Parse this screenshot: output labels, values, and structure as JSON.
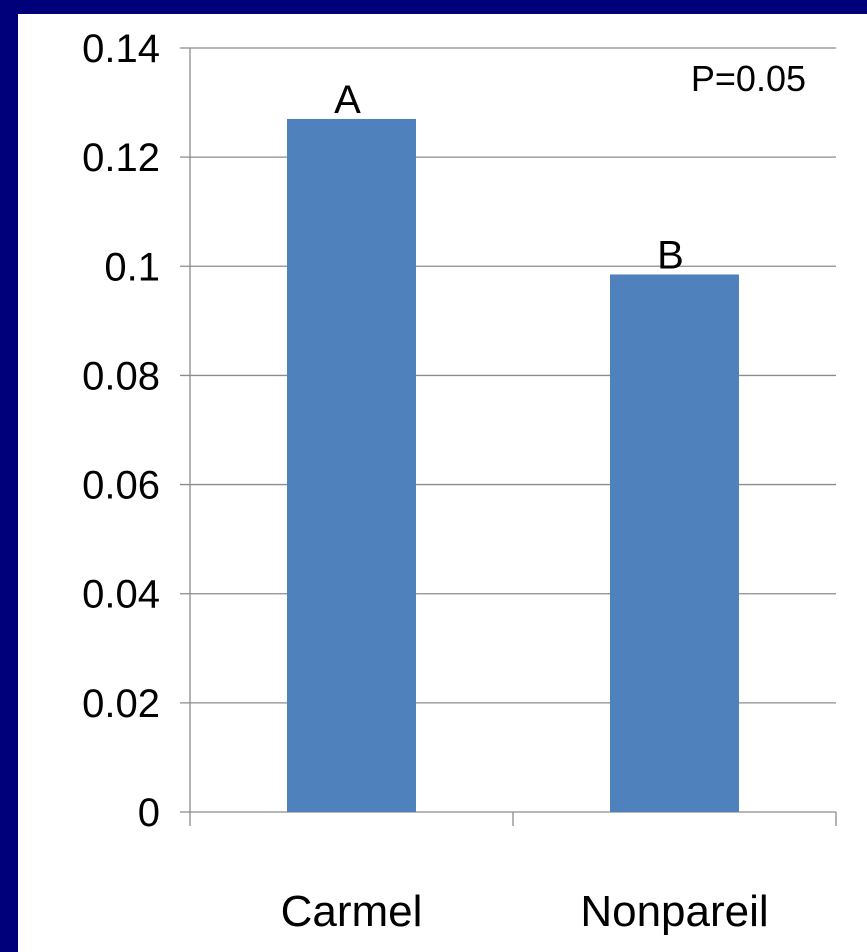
{
  "chart_data": {
    "type": "bar",
    "categories": [
      "Carmel",
      "Nonpareil"
    ],
    "values": [
      0.127,
      0.0985
    ],
    "bar_labels": [
      "A",
      "B"
    ],
    "annotation": "P=0.05",
    "title": "",
    "xlabel": "",
    "ylabel": "",
    "ylim": [
      0,
      0.14
    ],
    "yticks": [
      "0",
      "0.02",
      "0.04",
      "0.06",
      "0.08",
      "0.1",
      "0.12",
      "0.14"
    ],
    "grid": true,
    "legend": "none",
    "colors": {
      "bar": "#4f81bd",
      "gridline": "#8c8c8c",
      "background": "#00007a"
    }
  }
}
